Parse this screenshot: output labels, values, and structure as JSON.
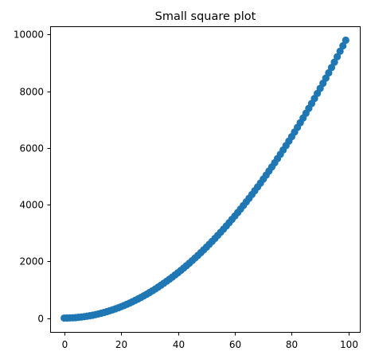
{
  "chart_data": {
    "type": "scatter",
    "title": "Small square plot",
    "xlabel": "",
    "ylabel": "",
    "x": [
      0,
      1,
      2,
      3,
      4,
      5,
      6,
      7,
      8,
      9,
      10,
      11,
      12,
      13,
      14,
      15,
      16,
      17,
      18,
      19,
      20,
      21,
      22,
      23,
      24,
      25,
      26,
      27,
      28,
      29,
      30,
      31,
      32,
      33,
      34,
      35,
      36,
      37,
      38,
      39,
      40,
      41,
      42,
      43,
      44,
      45,
      46,
      47,
      48,
      49,
      50,
      51,
      52,
      53,
      54,
      55,
      56,
      57,
      58,
      59,
      60,
      61,
      62,
      63,
      64,
      65,
      66,
      67,
      68,
      69,
      70,
      71,
      72,
      73,
      74,
      75,
      76,
      77,
      78,
      79,
      80,
      81,
      82,
      83,
      84,
      85,
      86,
      87,
      88,
      89,
      90,
      91,
      92,
      93,
      94,
      95,
      96,
      97,
      98,
      99
    ],
    "y": [
      0,
      1,
      4,
      9,
      16,
      25,
      36,
      49,
      64,
      81,
      100,
      121,
      144,
      169,
      196,
      225,
      256,
      289,
      324,
      361,
      400,
      441,
      484,
      529,
      576,
      625,
      676,
      729,
      784,
      841,
      900,
      961,
      1024,
      1089,
      1156,
      1225,
      1296,
      1369,
      1444,
      1521,
      1600,
      1681,
      1764,
      1849,
      1936,
      2025,
      2116,
      2209,
      2304,
      2401,
      2500,
      2601,
      2704,
      2809,
      2916,
      3025,
      3136,
      3249,
      3364,
      3481,
      3600,
      3721,
      3844,
      3969,
      4096,
      4225,
      4356,
      4489,
      4624,
      4761,
      4900,
      5041,
      5184,
      5329,
      5476,
      5625,
      5776,
      5929,
      6084,
      6241,
      6400,
      6561,
      6724,
      6889,
      7056,
      7225,
      7396,
      7569,
      7744,
      7921,
      8100,
      8281,
      8464,
      8649,
      8836,
      9025,
      9216,
      9409,
      9604,
      9801
    ],
    "xticks": [
      0,
      20,
      40,
      60,
      80,
      100
    ],
    "yticks": [
      0,
      2000,
      4000,
      6000,
      8000,
      10000
    ],
    "xlim": [
      -4.95,
      103.95
    ],
    "ylim": [
      -490.05,
      10291.05
    ],
    "grid": false,
    "marker_color": "#1f77b4"
  }
}
